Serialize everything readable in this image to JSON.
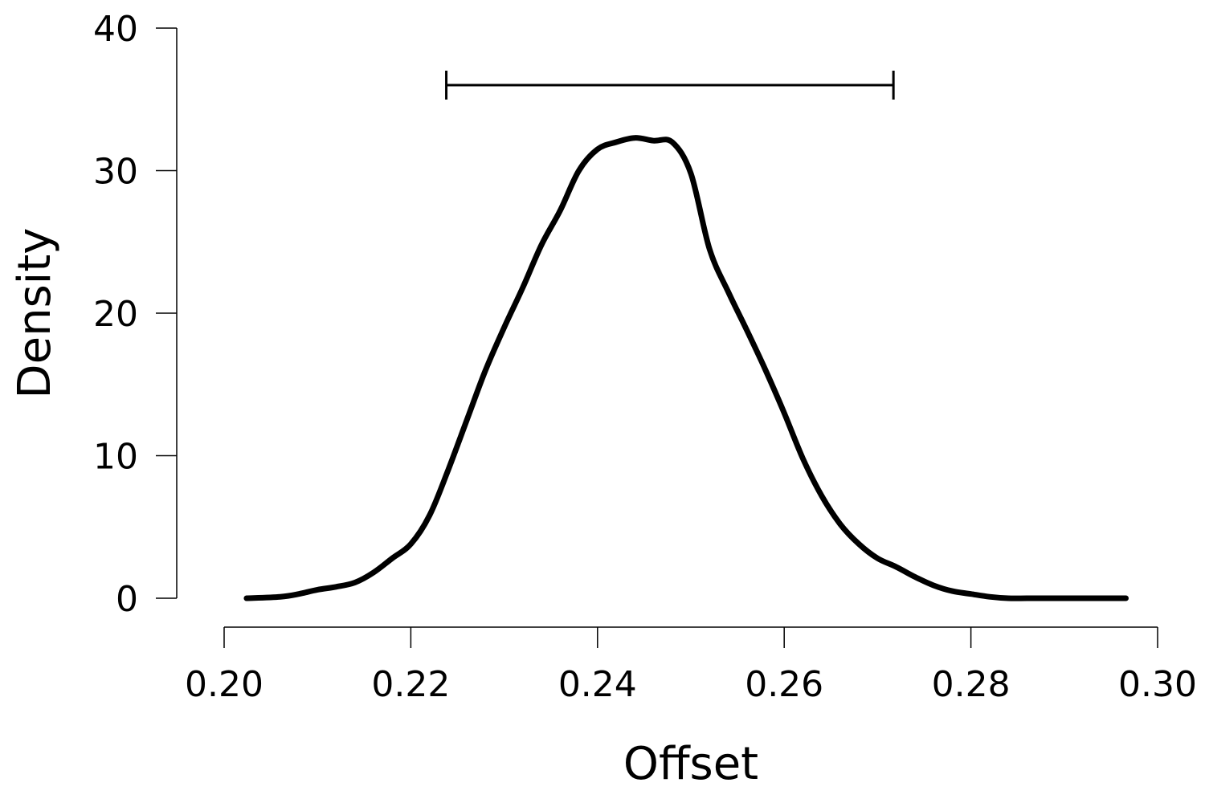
{
  "chart_data": {
    "type": "line",
    "xlabel": "Offset",
    "ylabel": "Density",
    "xlim": [
      0.2,
      0.3
    ],
    "ylim": [
      0,
      40
    ],
    "x_ticks": [
      0.2,
      0.22,
      0.24,
      0.26,
      0.28,
      0.3
    ],
    "x_tick_labels": [
      "0.20",
      "0.22",
      "0.24",
      "0.26",
      "0.28",
      "0.30"
    ],
    "y_ticks": [
      0,
      10,
      20,
      30,
      40
    ],
    "y_tick_labels": [
      "0",
      "10",
      "20",
      "30",
      "40"
    ],
    "grid": false,
    "series": [
      {
        "x": [
          0.2024,
          0.206,
          0.208,
          0.21,
          0.212,
          0.214,
          0.216,
          0.218,
          0.22,
          0.222,
          0.224,
          0.226,
          0.228,
          0.23,
          0.232,
          0.234,
          0.236,
          0.238,
          0.24,
          0.242,
          0.244,
          0.246,
          0.248,
          0.25,
          0.252,
          0.254,
          0.256,
          0.258,
          0.26,
          0.262,
          0.264,
          0.266,
          0.268,
          0.27,
          0.272,
          0.274,
          0.276,
          0.278,
          0.28,
          0.282,
          0.284,
          0.286,
          0.288,
          0.29,
          0.2966
        ],
        "values": [
          0.0,
          0.1,
          0.3,
          0.6,
          0.8,
          1.1,
          1.8,
          2.8,
          3.8,
          5.8,
          9.0,
          12.5,
          16.0,
          19.0,
          21.8,
          24.8,
          27.2,
          30.0,
          31.5,
          32.0,
          32.3,
          32.1,
          32.0,
          29.8,
          24.5,
          21.5,
          18.8,
          16.0,
          13.0,
          9.8,
          7.2,
          5.2,
          3.8,
          2.8,
          2.2,
          1.5,
          0.9,
          0.5,
          0.3,
          0.1,
          0.0,
          0.0,
          0.0,
          0.0,
          0.0
        ]
      }
    ],
    "interval": {
      "low": 0.2238,
      "high": 0.2717,
      "y": 36
    }
  }
}
